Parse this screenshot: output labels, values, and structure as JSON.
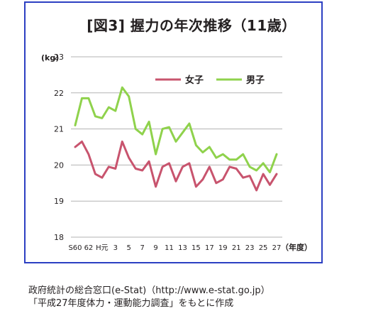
{
  "chart_data": {
    "type": "line",
    "title": "[図3] 握力の年次推移（11歳）",
    "ylabel": "(kg)",
    "xlabel": "（年度）",
    "ylim": [
      18,
      23
    ],
    "yticks": [
      18,
      19,
      20,
      21,
      22,
      23
    ],
    "xtick_labels": [
      "S60",
      "62",
      "H元",
      "3",
      "5",
      "7",
      "9",
      "11",
      "13",
      "15",
      "17",
      "19",
      "21",
      "23",
      "25",
      "27"
    ],
    "grid": true,
    "legend_position": "upper-center",
    "colors": {
      "female": "#c8546e",
      "male": "#8fd24c",
      "grid": "#b3b3b3",
      "frame": "#2c3fc2"
    },
    "series": [
      {
        "name": "女子",
        "values": [
          20.5,
          20.65,
          20.3,
          19.75,
          19.65,
          19.95,
          19.9,
          20.65,
          20.2,
          19.9,
          19.85,
          20.1,
          19.4,
          19.95,
          20.05,
          19.55,
          19.95,
          20.05,
          19.4,
          19.6,
          19.95,
          19.5,
          19.6,
          19.95,
          19.9,
          19.65,
          19.7,
          19.3,
          19.75,
          19.45,
          19.75
        ]
      },
      {
        "name": "男子",
        "values": [
          21.1,
          21.85,
          21.85,
          21.35,
          21.3,
          21.6,
          21.5,
          22.15,
          21.9,
          21.0,
          20.85,
          21.2,
          20.3,
          21.0,
          21.05,
          20.65,
          20.9,
          21.15,
          20.55,
          20.35,
          20.5,
          20.2,
          20.3,
          20.15,
          20.15,
          20.3,
          19.95,
          19.85,
          20.05,
          19.8,
          20.3
        ]
      }
    ]
  },
  "source_line1": "政府統計の総合窓口(e-Stat)（http://www.e-stat.go.jp）",
  "source_line2": "「平成27年度体力・運動能力調査」をもとに作成"
}
